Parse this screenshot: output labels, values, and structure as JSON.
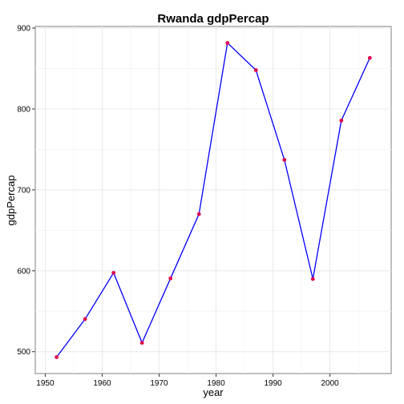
{
  "chart_data": {
    "type": "line",
    "title": "Rwanda gdpPercap",
    "xlabel": "year",
    "ylabel": "gdpPercap",
    "x": [
      1952,
      1957,
      1962,
      1967,
      1972,
      1977,
      1982,
      1987,
      1992,
      1997,
      2002,
      2007
    ],
    "series": [
      {
        "values": [
          493.3,
          540.3,
          597.5,
          511.0,
          590.6,
          670.1,
          881.6,
          848.0,
          737.1,
          589.9,
          785.7,
          863.1
        ]
      }
    ],
    "xlim": [
      1948.25,
      2010.75
    ],
    "ylim": [
      473,
      902
    ],
    "x_ticks": [
      1950,
      1960,
      1970,
      1980,
      1990,
      2000
    ],
    "y_ticks": [
      500,
      600,
      700,
      800,
      900
    ],
    "x_tick_labels": [
      "1950",
      "1960",
      "1970",
      "1980",
      "1990",
      "2000"
    ],
    "y_tick_labels": [
      "500",
      "600",
      "700",
      "800",
      "900"
    ],
    "grid": true,
    "line_color": "#0000ff",
    "point_color": "#e0004b"
  }
}
